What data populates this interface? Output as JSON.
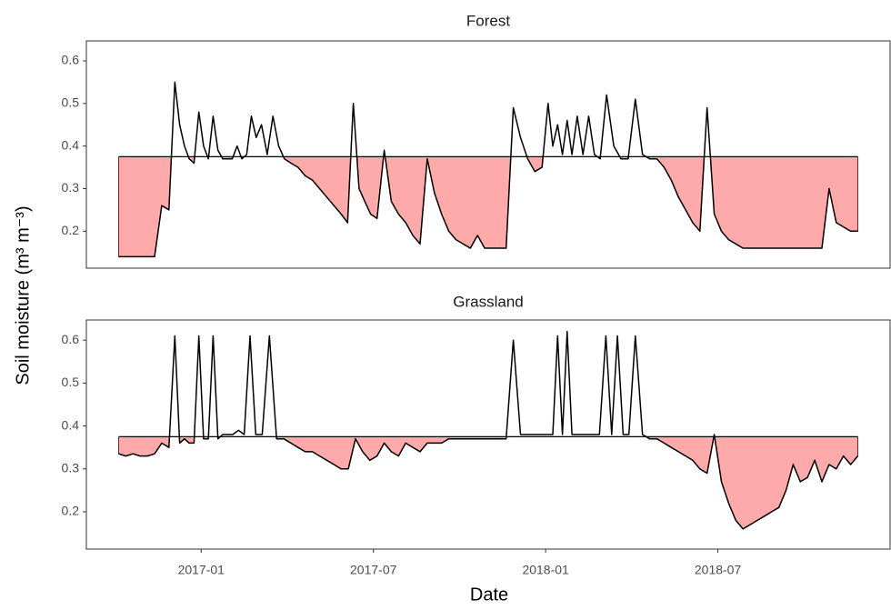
{
  "y_label": "Soil moisture (m³ m⁻³)",
  "x_label": "Date",
  "chart_data": [
    {
      "type": "line",
      "title": "Forest",
      "threshold": 0.375,
      "color": "#000000",
      "fill": "#ffaaaa",
      "xlim": [
        "2016-09",
        "2019-01"
      ],
      "ylim": [
        0.113,
        0.647
      ],
      "yticks": [
        0.2,
        0.3,
        0.4,
        0.5,
        0.6
      ],
      "x": [
        "2016-10",
        "2016-10",
        "2016-10",
        "2016-10",
        "2016-11",
        "2016-11",
        "2016-11",
        "2016-11",
        "2016-12",
        "2016-12",
        "2016-12",
        "2016-12",
        "2016-12",
        "2016-12",
        "2017-01",
        "2017-01",
        "2017-01",
        "2017-01",
        "2017-01",
        "2017-01",
        "2017-02",
        "2017-02",
        "2017-02",
        "2017-02",
        "2017-02",
        "2017-02",
        "2017-03",
        "2017-03",
        "2017-03",
        "2017-03",
        "2017-03",
        "2017-04",
        "2017-04",
        "2017-04",
        "2017-04",
        "2017-05",
        "2017-05",
        "2017-05",
        "2017-05",
        "2017-06",
        "2017-06",
        "2017-06",
        "2017-06",
        "2017-06",
        "2017-07",
        "2017-07",
        "2017-07",
        "2017-07",
        "2017-08",
        "2017-08",
        "2017-08",
        "2017-08",
        "2017-09",
        "2017-09",
        "2017-09",
        "2017-09",
        "2017-10",
        "2017-10",
        "2017-10",
        "2017-10",
        "2017-11",
        "2017-11",
        "2017-11",
        "2017-11",
        "2017-12",
        "2017-12",
        "2017-12",
        "2017-12",
        "2018-01",
        "2018-01",
        "2018-01",
        "2018-01",
        "2018-01",
        "2018-01",
        "2018-02",
        "2018-02",
        "2018-02",
        "2018-02",
        "2018-02",
        "2018-03",
        "2018-03",
        "2018-03",
        "2018-03",
        "2018-04",
        "2018-04",
        "2018-04",
        "2018-04",
        "2018-05",
        "2018-05",
        "2018-05",
        "2018-05",
        "2018-06",
        "2018-06",
        "2018-06",
        "2018-06",
        "2018-07",
        "2018-07",
        "2018-07",
        "2018-07",
        "2018-08",
        "2018-08",
        "2018-08",
        "2018-08",
        "2018-09",
        "2018-09",
        "2018-09",
        "2018-09",
        "2018-10",
        "2018-10",
        "2018-10",
        "2018-10",
        "2018-11",
        "2018-11",
        "2018-11",
        "2018-11"
      ],
      "values": [
        0.14,
        0.14,
        0.14,
        0.14,
        0.14,
        0.14,
        0.26,
        0.25,
        0.55,
        0.45,
        0.4,
        0.37,
        0.36,
        0.48,
        0.4,
        0.37,
        0.47,
        0.39,
        0.37,
        0.37,
        0.37,
        0.4,
        0.37,
        0.38,
        0.47,
        0.42,
        0.45,
        0.38,
        0.47,
        0.4,
        0.37,
        0.36,
        0.35,
        0.33,
        0.32,
        0.3,
        0.28,
        0.26,
        0.24,
        0.22,
        0.5,
        0.3,
        0.27,
        0.24,
        0.23,
        0.39,
        0.27,
        0.24,
        0.22,
        0.19,
        0.17,
        0.37,
        0.29,
        0.24,
        0.2,
        0.18,
        0.17,
        0.16,
        0.19,
        0.16,
        0.16,
        0.16,
        0.16,
        0.49,
        0.42,
        0.37,
        0.34,
        0.35,
        0.5,
        0.4,
        0.45,
        0.38,
        0.46,
        0.38,
        0.47,
        0.38,
        0.47,
        0.38,
        0.37,
        0.52,
        0.4,
        0.37,
        0.37,
        0.51,
        0.38,
        0.37,
        0.37,
        0.35,
        0.32,
        0.28,
        0.25,
        0.22,
        0.2,
        0.49,
        0.24,
        0.2,
        0.18,
        0.17,
        0.16,
        0.16,
        0.16,
        0.16,
        0.16,
        0.16,
        0.16,
        0.16,
        0.16,
        0.16,
        0.16,
        0.16,
        0.3,
        0.22,
        0.21,
        0.2,
        0.2
      ]
    },
    {
      "type": "line",
      "title": "Grassland",
      "threshold": 0.375,
      "color": "#000000",
      "fill": "#ffaaaa",
      "xlim": [
        "2016-09",
        "2019-01"
      ],
      "ylim": [
        0.113,
        0.647
      ],
      "yticks": [
        0.2,
        0.3,
        0.4,
        0.5,
        0.6
      ],
      "xticks": [
        "2017-01",
        "2017-07",
        "2018-01",
        "2018-07"
      ],
      "x": [
        "2016-10",
        "2016-10",
        "2016-10",
        "2016-10",
        "2016-11",
        "2016-11",
        "2016-11",
        "2016-11",
        "2016-12",
        "2016-12",
        "2016-12",
        "2016-12",
        "2016-12",
        "2016-12",
        "2017-01",
        "2017-01",
        "2017-01",
        "2017-01",
        "2017-01",
        "2017-01",
        "2017-02",
        "2017-02",
        "2017-02",
        "2017-02",
        "2017-02",
        "2017-03",
        "2017-03",
        "2017-03",
        "2017-03",
        "2017-04",
        "2017-04",
        "2017-04",
        "2017-04",
        "2017-05",
        "2017-05",
        "2017-05",
        "2017-05",
        "2017-06",
        "2017-06",
        "2017-06",
        "2017-06",
        "2017-07",
        "2017-07",
        "2017-07",
        "2017-07",
        "2017-08",
        "2017-08",
        "2017-08",
        "2017-08",
        "2017-09",
        "2017-09",
        "2017-09",
        "2017-09",
        "2017-10",
        "2017-10",
        "2017-10",
        "2017-10",
        "2017-11",
        "2017-11",
        "2017-11",
        "2017-11",
        "2017-12",
        "2017-12",
        "2017-12",
        "2017-12",
        "2018-01",
        "2018-01",
        "2018-01",
        "2018-01",
        "2018-01",
        "2018-01",
        "2018-02",
        "2018-02",
        "2018-02",
        "2018-02",
        "2018-03",
        "2018-03",
        "2018-03",
        "2018-03",
        "2018-03",
        "2018-04",
        "2018-04",
        "2018-04",
        "2018-04",
        "2018-05",
        "2018-05",
        "2018-05",
        "2018-05",
        "2018-06",
        "2018-06",
        "2018-06",
        "2018-06",
        "2018-07",
        "2018-07",
        "2018-07",
        "2018-07",
        "2018-08",
        "2018-08",
        "2018-08",
        "2018-08",
        "2018-09",
        "2018-09",
        "2018-09",
        "2018-09",
        "2018-10",
        "2018-10",
        "2018-10",
        "2018-10",
        "2018-11",
        "2018-11",
        "2018-11",
        "2018-11"
      ],
      "values": [
        0.335,
        0.33,
        0.335,
        0.33,
        0.33,
        0.335,
        0.36,
        0.35,
        0.61,
        0.36,
        0.37,
        0.36,
        0.36,
        0.61,
        0.37,
        0.37,
        0.61,
        0.37,
        0.38,
        0.38,
        0.38,
        0.39,
        0.38,
        0.61,
        0.38,
        0.38,
        0.61,
        0.37,
        0.37,
        0.36,
        0.35,
        0.34,
        0.34,
        0.33,
        0.32,
        0.31,
        0.3,
        0.3,
        0.37,
        0.34,
        0.32,
        0.33,
        0.36,
        0.34,
        0.33,
        0.36,
        0.35,
        0.34,
        0.36,
        0.36,
        0.36,
        0.37,
        0.37,
        0.37,
        0.37,
        0.37,
        0.37,
        0.37,
        0.37,
        0.37,
        0.6,
        0.38,
        0.38,
        0.38,
        0.38,
        0.38,
        0.38,
        0.61,
        0.38,
        0.62,
        0.38,
        0.38,
        0.38,
        0.38,
        0.38,
        0.61,
        0.38,
        0.61,
        0.38,
        0.38,
        0.61,
        0.38,
        0.37,
        0.37,
        0.36,
        0.35,
        0.34,
        0.33,
        0.32,
        0.3,
        0.29,
        0.38,
        0.27,
        0.22,
        0.18,
        0.16,
        0.17,
        0.18,
        0.19,
        0.2,
        0.21,
        0.25,
        0.31,
        0.27,
        0.28,
        0.32,
        0.27,
        0.31,
        0.3,
        0.33,
        0.31,
        0.33
      ]
    }
  ]
}
